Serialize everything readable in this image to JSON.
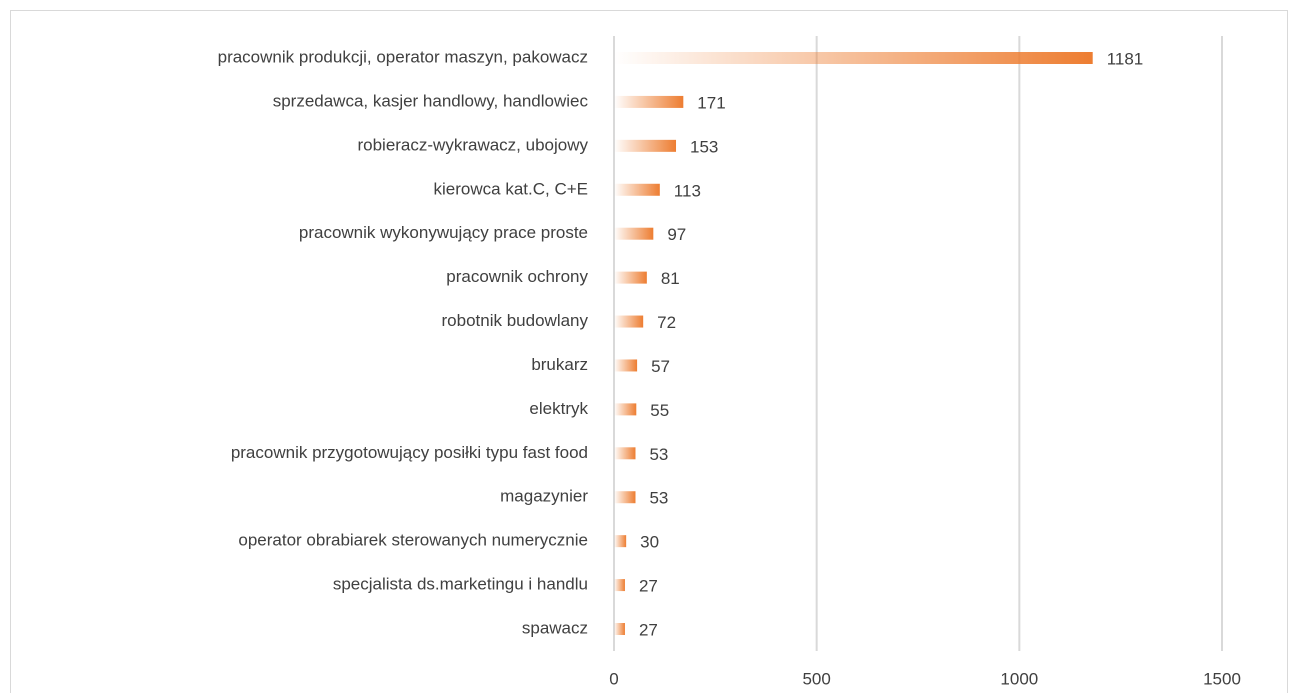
{
  "chart_data": {
    "type": "bar",
    "orientation": "horizontal",
    "categories": [
      "pracownik produkcji, operator maszyn, pakowacz",
      "sprzedawca, kasjer handlowy, handlowiec",
      "robieracz-wykrawacz, ubojowy",
      "kierowca kat.C, C+E",
      "pracownik wykonywujący prace proste",
      "pracownik ochrony",
      "robotnik budowlany",
      "brukarz",
      "elektryk",
      "pracownik przygotowujący posiłki typu fast food",
      "magazynier",
      "operator obrabiarek sterowanych numerycznie",
      "specjalista ds.marketingu i handlu",
      "spawacz"
    ],
    "values": [
      1181,
      171,
      153,
      113,
      97,
      81,
      72,
      57,
      55,
      53,
      53,
      30,
      27,
      27
    ],
    "color": "#ed7d31",
    "xlim": [
      0,
      1500
    ],
    "xticks": [
      0,
      500,
      1000,
      1500
    ],
    "grid": true
  }
}
